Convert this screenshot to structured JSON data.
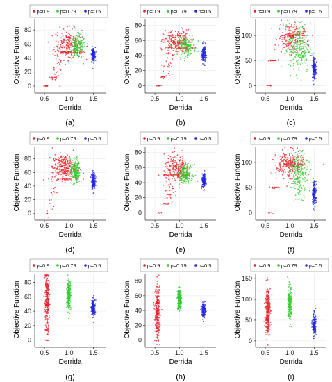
{
  "figure": {
    "panels": [
      {
        "caption": "(a)"
      },
      {
        "caption": "(b)"
      },
      {
        "caption": "(c)"
      },
      {
        "caption": "(d)"
      },
      {
        "caption": "(e)"
      },
      {
        "caption": "(f)"
      },
      {
        "caption": "(g)"
      },
      {
        "caption": "(h)"
      },
      {
        "caption": "(i)"
      }
    ]
  },
  "chart_data": [
    {
      "type": "scatter",
      "xlabel": "Derrida",
      "ylabel": "Objective Function",
      "xlim": [
        0.3,
        1.75
      ],
      "ylim": [
        -8,
        95
      ],
      "xticks": [
        0.5,
        1.0,
        1.5
      ],
      "yticks": [
        0,
        20,
        40,
        60,
        80
      ],
      "legend": "top",
      "series": [
        {
          "name": "p=0.9",
          "color": "#e8202a",
          "clusters": [
            {
              "xc": 0.55,
              "yc": 0,
              "xs": 0.03,
              "ys": 0.3,
              "n": 10
            },
            {
              "xc": 0.68,
              "yc": 12,
              "xs": 0.05,
              "ys": 1,
              "n": 15
            },
            {
              "xc": 0.78,
              "yc": 28,
              "xs": 0.05,
              "ys": 14,
              "n": 30
            },
            {
              "xc": 1.0,
              "yc": 48,
              "xs": 0.15,
              "ys": 0.6,
              "n": 40
            },
            {
              "xc": 0.98,
              "yc": 60,
              "xs": 0.14,
              "ys": 11,
              "n": 220
            }
          ]
        },
        {
          "name": "p=0.79",
          "color": "#2ecc2e",
          "clusters": [
            {
              "xc": 1.18,
              "yc": 55,
              "xs": 0.08,
              "ys": 8,
              "n": 180
            }
          ]
        },
        {
          "name": "p=0.5",
          "color": "#2323e0",
          "clusters": [
            {
              "xc": 1.5,
              "yc": 45,
              "xs": 0.02,
              "ys": 5,
              "n": 150
            }
          ]
        }
      ]
    },
    {
      "type": "scatter",
      "xlabel": "Derrida",
      "ylabel": "Objective Function",
      "xlim": [
        0.3,
        1.75
      ],
      "ylim": [
        -8,
        88
      ],
      "xticks": [
        0.5,
        1.0,
        1.5
      ],
      "yticks": [
        0,
        20,
        40,
        60,
        80
      ],
      "legend": "top",
      "series": [
        {
          "name": "p=0.9",
          "color": "#e8202a",
          "clusters": [
            {
              "xc": 0.58,
              "yc": 0,
              "xs": 0.03,
              "ys": 0.3,
              "n": 10
            },
            {
              "xc": 0.68,
              "yc": 12,
              "xs": 0.04,
              "ys": 1,
              "n": 15
            },
            {
              "xc": 0.78,
              "yc": 25,
              "xs": 0.05,
              "ys": 10,
              "n": 25
            },
            {
              "xc": 1.0,
              "yc": 50,
              "xs": 0.15,
              "ys": 0.6,
              "n": 40
            },
            {
              "xc": 0.95,
              "yc": 58,
              "xs": 0.14,
              "ys": 8,
              "n": 220
            }
          ]
        },
        {
          "name": "p=0.79",
          "color": "#2ecc2e",
          "clusters": [
            {
              "xc": 1.15,
              "yc": 52,
              "xs": 0.09,
              "ys": 6,
              "n": 180
            }
          ]
        },
        {
          "name": "p=0.5",
          "color": "#2323e0",
          "clusters": [
            {
              "xc": 1.5,
              "yc": 42,
              "xs": 0.02,
              "ys": 6,
              "n": 150
            }
          ]
        }
      ]
    },
    {
      "type": "scatter",
      "xlabel": "Derrida",
      "ylabel": "Objective Function",
      "xlim": [
        0.3,
        1.75
      ],
      "ylim": [
        -12,
        132
      ],
      "xticks": [
        0.5,
        1.0,
        1.5
      ],
      "yticks": [
        0,
        50,
        100
      ],
      "legend": "top",
      "series": [
        {
          "name": "p=0.9",
          "color": "#e8202a",
          "clusters": [
            {
              "xc": 0.58,
              "yc": 0,
              "xs": 0.03,
              "ys": 0.3,
              "n": 10
            },
            {
              "xc": 0.65,
              "yc": 50,
              "xs": 0.07,
              "ys": 0.8,
              "n": 20
            },
            {
              "xc": 1.05,
              "yc": 100,
              "xs": 0.14,
              "ys": 0.8,
              "n": 40
            },
            {
              "xc": 1.02,
              "yc": 95,
              "xs": 0.13,
              "ys": 15,
              "n": 200
            }
          ]
        },
        {
          "name": "p=0.79",
          "color": "#2ecc2e",
          "clusters": [
            {
              "xc": 1.2,
              "yc": 75,
              "xs": 0.11,
              "ys": 25,
              "n": 220
            }
          ]
        },
        {
          "name": "p=0.5",
          "color": "#2323e0",
          "clusters": [
            {
              "xc": 1.5,
              "yc": 35,
              "xs": 0.02,
              "ys": 12,
              "n": 150
            }
          ]
        }
      ]
    },
    {
      "type": "scatter",
      "xlabel": "Derrida",
      "ylabel": "Objective Function",
      "xlim": [
        0.3,
        1.75
      ],
      "ylim": [
        -8,
        98
      ],
      "xticks": [
        0.5,
        1.0,
        1.5
      ],
      "yticks": [
        0,
        20,
        40,
        60,
        80
      ],
      "legend": "top",
      "series": [
        {
          "name": "p=0.9",
          "color": "#e8202a",
          "clusters": [
            {
              "xc": 0.55,
              "yc": 0,
              "xs": 0.02,
              "ys": 0.3,
              "n": 6
            },
            {
              "xc": 0.65,
              "yc": 30,
              "xs": 0.05,
              "ys": 15,
              "n": 25
            },
            {
              "xc": 0.9,
              "yc": 50,
              "xs": 0.15,
              "ys": 0.6,
              "n": 30
            },
            {
              "xc": 0.9,
              "yc": 68,
              "xs": 0.12,
              "ys": 9,
              "n": 260
            }
          ]
        },
        {
          "name": "p=0.79",
          "color": "#2ecc2e",
          "clusters": [
            {
              "xc": 1.13,
              "yc": 62,
              "xs": 0.05,
              "ys": 9,
              "n": 200
            }
          ]
        },
        {
          "name": "p=0.5",
          "color": "#2323e0",
          "clusters": [
            {
              "xc": 1.5,
              "yc": 48,
              "xs": 0.02,
              "ys": 6,
              "n": 150
            }
          ]
        }
      ]
    },
    {
      "type": "scatter",
      "xlabel": "Derrida",
      "ylabel": "Objective Function",
      "xlim": [
        0.3,
        1.75
      ],
      "ylim": [
        -8,
        88
      ],
      "xticks": [
        0.5,
        1.0,
        1.5
      ],
      "yticks": [
        0,
        20,
        40,
        60,
        80
      ],
      "legend": "top",
      "series": [
        {
          "name": "p=0.9",
          "color": "#e8202a",
          "clusters": [
            {
              "xc": 0.6,
              "yc": 0,
              "xs": 0.02,
              "ys": 0.3,
              "n": 8
            },
            {
              "xc": 0.72,
              "yc": 12,
              "xs": 0.04,
              "ys": 1,
              "n": 15
            },
            {
              "xc": 0.8,
              "yc": 30,
              "xs": 0.05,
              "ys": 12,
              "n": 30
            },
            {
              "xc": 0.95,
              "yc": 50,
              "xs": 0.15,
              "ys": 0.6,
              "n": 40
            },
            {
              "xc": 0.95,
              "yc": 58,
              "xs": 0.13,
              "ys": 9,
              "n": 220
            }
          ]
        },
        {
          "name": "p=0.79",
          "color": "#2ecc2e",
          "clusters": [
            {
              "xc": 1.12,
              "yc": 52,
              "xs": 0.08,
              "ys": 6,
              "n": 180
            }
          ]
        },
        {
          "name": "p=0.5",
          "color": "#2323e0",
          "clusters": [
            {
              "xc": 1.5,
              "yc": 42,
              "xs": 0.02,
              "ys": 5,
              "n": 150
            }
          ]
        }
      ]
    },
    {
      "type": "scatter",
      "xlabel": "Derrida",
      "ylabel": "Objective Function",
      "xlim": [
        0.3,
        1.75
      ],
      "ylim": [
        -12,
        132
      ],
      "xticks": [
        0.5,
        1.0,
        1.5
      ],
      "yticks": [
        0,
        50,
        100
      ],
      "legend": "top",
      "series": [
        {
          "name": "p=0.9",
          "color": "#e8202a",
          "clusters": [
            {
              "xc": 0.58,
              "yc": 0,
              "xs": 0.03,
              "ys": 0.3,
              "n": 10
            },
            {
              "xc": 0.7,
              "yc": 50,
              "xs": 0.07,
              "ys": 0.8,
              "n": 20
            },
            {
              "xc": 1.05,
              "yc": 97,
              "xs": 0.15,
              "ys": 0.8,
              "n": 40
            },
            {
              "xc": 1.0,
              "yc": 95,
              "xs": 0.14,
              "ys": 15,
              "n": 220
            }
          ]
        },
        {
          "name": "p=0.79",
          "color": "#2ecc2e",
          "clusters": [
            {
              "xc": 1.2,
              "yc": 75,
              "xs": 0.09,
              "ys": 22,
              "n": 200
            }
          ]
        },
        {
          "name": "p=0.5",
          "color": "#2323e0",
          "clusters": [
            {
              "xc": 1.5,
              "yc": 40,
              "xs": 0.02,
              "ys": 12,
              "n": 150
            }
          ]
        }
      ]
    },
    {
      "type": "scatter",
      "xlabel": "Derrida",
      "ylabel": "Objective Function",
      "xlim": [
        0.3,
        1.75
      ],
      "ylim": [
        -8,
        92
      ],
      "xticks": [
        0.5,
        1.0,
        1.5
      ],
      "yticks": [
        0,
        20,
        40,
        60,
        80
      ],
      "legend": "top",
      "series": [
        {
          "name": "p=0.9",
          "color": "#e8202a",
          "clusters": [
            {
              "xc": 0.55,
              "yc": 0,
              "xs": 0.015,
              "ys": 0.3,
              "n": 12
            },
            {
              "xc": 0.55,
              "yc": 14,
              "xs": 0.02,
              "ys": 0.5,
              "n": 12
            },
            {
              "xc": 0.55,
              "yc": 48,
              "xs": 0.02,
              "ys": 0.6,
              "n": 20
            },
            {
              "xc": 0.55,
              "yc": 55,
              "xs": 0.025,
              "ys": 20,
              "n": 260
            }
          ]
        },
        {
          "name": "p=0.79",
          "color": "#2ecc2e",
          "clusters": [
            {
              "xc": 1.0,
              "yc": 63,
              "xs": 0.02,
              "ys": 10,
              "n": 220
            }
          ]
        },
        {
          "name": "p=0.5",
          "color": "#2323e0",
          "clusters": [
            {
              "xc": 1.5,
              "yc": 45,
              "xs": 0.02,
              "ys": 6,
              "n": 150
            }
          ]
        }
      ]
    },
    {
      "type": "scatter",
      "xlabel": "Derrida",
      "ylabel": "Objective Function",
      "xlim": [
        0.3,
        1.75
      ],
      "ylim": [
        -8,
        90
      ],
      "xticks": [
        0.5,
        1.0,
        1.5
      ],
      "yticks": [
        0,
        20,
        40,
        60,
        80
      ],
      "legend": "top",
      "series": [
        {
          "name": "p=0.9",
          "color": "#e8202a",
          "clusters": [
            {
              "xc": 0.55,
              "yc": 12,
              "xs": 0.02,
              "ys": 0.5,
              "n": 12
            },
            {
              "xc": 0.55,
              "yc": 50,
              "xs": 0.02,
              "ys": 0.6,
              "n": 15
            },
            {
              "xc": 0.55,
              "yc": 35,
              "xs": 0.025,
              "ys": 18,
              "n": 260
            }
          ]
        },
        {
          "name": "p=0.79",
          "color": "#2ecc2e",
          "clusters": [
            {
              "xc": 1.0,
              "yc": 55,
              "xs": 0.02,
              "ys": 7,
              "n": 220
            }
          ]
        },
        {
          "name": "p=0.5",
          "color": "#2323e0",
          "clusters": [
            {
              "xc": 1.5,
              "yc": 40,
              "xs": 0.02,
              "ys": 5,
              "n": 150
            }
          ]
        }
      ]
    },
    {
      "type": "scatter",
      "xlabel": "Derrida",
      "ylabel": "Objective Function",
      "xlim": [
        0.3,
        1.75
      ],
      "ylim": [
        -12,
        162
      ],
      "xticks": [
        0.5,
        1.0,
        1.5
      ],
      "yticks": [
        0,
        50,
        100,
        150
      ],
      "legend": "top",
      "series": [
        {
          "name": "p=0.9",
          "color": "#e8202a",
          "clusters": [
            {
              "xc": 0.55,
              "yc": 50,
              "xs": 0.02,
              "ys": 0.8,
              "n": 15
            },
            {
              "xc": 0.55,
              "yc": 75,
              "xs": 0.025,
              "ys": 30,
              "n": 260
            }
          ]
        },
        {
          "name": "p=0.79",
          "color": "#2ecc2e",
          "clusters": [
            {
              "xc": 1.0,
              "yc": 90,
              "xs": 0.02,
              "ys": 20,
              "n": 220
            }
          ]
        },
        {
          "name": "p=0.5",
          "color": "#2323e0",
          "clusters": [
            {
              "xc": 1.5,
              "yc": 40,
              "xs": 0.02,
              "ys": 14,
              "n": 150
            }
          ]
        }
      ]
    }
  ]
}
